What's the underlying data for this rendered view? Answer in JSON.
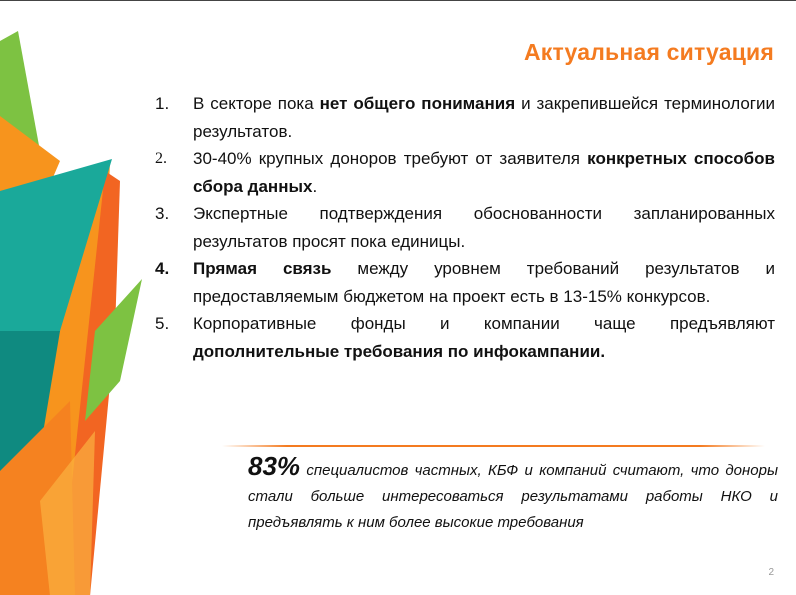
{
  "slide": {
    "title": "Актуальная ситуация",
    "page_number": "2"
  },
  "list": [
    {
      "num": "1.",
      "parts": [
        {
          "t": "В секторе пока ",
          "b": false
        },
        {
          "t": "нет общего понимания",
          "b": true
        },
        {
          "t": " и закрепившейся терминологии результатов.",
          "b": false
        }
      ]
    },
    {
      "num": "2.",
      "parts": [
        {
          "t": "30-40% крупных доноров требуют от заявителя ",
          "b": false
        },
        {
          "t": "конкретных способов сбора данных",
          "b": true
        },
        {
          "t": ".",
          "b": false
        }
      ]
    },
    {
      "num": "3.",
      "parts": [
        {
          "t": "Экспертные подтверждения обоснованности запланированных результатов просят пока единицы.",
          "b": false
        }
      ]
    },
    {
      "num": "4.",
      "parts": [
        {
          "t": "Прямая связь",
          "b": true
        },
        {
          "t": " между уровнем требований результатов и предоставляемым бюджетом на проект есть в 13-15% конкурсов.",
          "b": false
        }
      ]
    },
    {
      "num": "5.",
      "parts": [
        {
          "t": "Корпоративные фонды и компании чаще предъявляют ",
          "b": false
        },
        {
          "t": "дополнительные требования по инфокампании.",
          "b": true
        }
      ]
    }
  ],
  "quote": {
    "highlight": "83%",
    "text": " специалистов частных, КБФ и компаний считают, что доноры стали больше интересоваться результатами работы НКО и предъявлять к ним более высокие требования"
  },
  "colors": {
    "accent": "#f47b20",
    "green": "#7dc242",
    "teal": "#1aa99a",
    "orange": "#f7941d"
  }
}
